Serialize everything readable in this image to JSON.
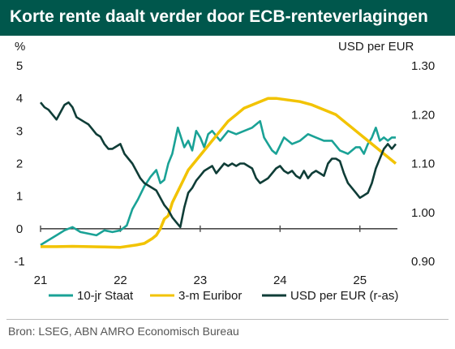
{
  "title": "Korte rente daalt verder door ECB-renteverlagingen",
  "source": "Bron: LSEG, ABN AMRO Economisch Bureau",
  "colors": {
    "title_bg": "#00574c",
    "staat": "#1aa296",
    "euribor": "#f2c300",
    "usd": "#0f3d37"
  },
  "chart_data": {
    "type": "line",
    "y_left": {
      "label": "%",
      "ticks": [
        "5",
        "4",
        "3",
        "2",
        "1",
        "0",
        "-1"
      ],
      "range": [
        -1,
        5
      ]
    },
    "y_right": {
      "label": "USD per EUR",
      "ticks": [
        "1.30",
        "1.20",
        "1.10",
        "1.00",
        "0.90"
      ],
      "range": [
        0.9,
        1.3
      ]
    },
    "x_ticks": [
      "21",
      "22",
      "23",
      "24",
      "25"
    ],
    "x_range": [
      2021.0,
      2025.47
    ],
    "series": [
      {
        "name": "10-jr Staat",
        "axis": "left",
        "x": [
          2021.0,
          2021.1,
          2021.2,
          2021.3,
          2021.4,
          2021.5,
          2021.6,
          2021.7,
          2021.8,
          2021.9,
          2022.0,
          2022.08,
          2022.15,
          2022.22,
          2022.3,
          2022.38,
          2022.45,
          2022.5,
          2022.55,
          2022.6,
          2022.65,
          2022.72,
          2022.8,
          2022.85,
          2022.9,
          2022.95,
          2023.0,
          2023.05,
          2023.1,
          2023.15,
          2023.25,
          2023.35,
          2023.45,
          2023.55,
          2023.65,
          2023.75,
          2023.8,
          2023.85,
          2023.9,
          2023.95,
          2024.05,
          2024.15,
          2024.25,
          2024.35,
          2024.45,
          2024.55,
          2024.65,
          2024.75,
          2024.85,
          2024.95,
          2025.0,
          2025.05,
          2025.1,
          2025.15,
          2025.2,
          2025.25,
          2025.3,
          2025.35,
          2025.4,
          2025.45
        ],
        "values": [
          -0.5,
          -0.35,
          -0.2,
          -0.05,
          0.05,
          -0.1,
          -0.15,
          -0.2,
          -0.05,
          -0.1,
          -0.05,
          0.1,
          0.6,
          0.9,
          1.3,
          1.6,
          1.8,
          1.4,
          1.5,
          2.0,
          2.3,
          3.1,
          2.5,
          2.7,
          2.4,
          3.0,
          2.8,
          2.5,
          2.9,
          3.0,
          2.7,
          3.0,
          2.9,
          3.0,
          3.1,
          3.3,
          2.8,
          2.6,
          2.4,
          2.3,
          2.8,
          2.6,
          2.7,
          2.9,
          2.8,
          2.7,
          2.7,
          2.4,
          2.3,
          2.5,
          2.5,
          2.3,
          2.6,
          2.8,
          3.1,
          2.7,
          2.8,
          2.7,
          2.8,
          2.8
        ]
      },
      {
        "name": "3-m Euribor",
        "axis": "left",
        "x": [
          2021.0,
          2021.2,
          2021.4,
          2021.6,
          2021.8,
          2022.0,
          2022.2,
          2022.3,
          2022.4,
          2022.45,
          2022.5,
          2022.55,
          2022.6,
          2022.65,
          2022.75,
          2022.85,
          2022.95,
          2023.05,
          2023.15,
          2023.25,
          2023.35,
          2023.45,
          2023.55,
          2023.65,
          2023.75,
          2023.85,
          2023.95,
          2024.1,
          2024.25,
          2024.4,
          2024.5,
          2024.6,
          2024.7,
          2024.8,
          2024.9,
          2025.0,
          2025.05,
          2025.1,
          2025.15,
          2025.2,
          2025.25,
          2025.3,
          2025.35,
          2025.4,
          2025.45
        ],
        "values": [
          -0.55,
          -0.55,
          -0.54,
          -0.55,
          -0.56,
          -0.57,
          -0.5,
          -0.45,
          -0.3,
          -0.2,
          0.0,
          0.3,
          0.4,
          0.8,
          1.3,
          1.8,
          2.1,
          2.4,
          2.7,
          3.0,
          3.3,
          3.5,
          3.7,
          3.8,
          3.9,
          4.0,
          4.0,
          3.95,
          3.9,
          3.8,
          3.7,
          3.6,
          3.5,
          3.3,
          3.1,
          2.9,
          2.8,
          2.7,
          2.6,
          2.5,
          2.4,
          2.3,
          2.2,
          2.1,
          2.0
        ]
      },
      {
        "name": "USD per EUR (r-as)",
        "axis": "right",
        "x": [
          2021.0,
          2021.05,
          2021.1,
          2021.15,
          2021.2,
          2021.25,
          2021.3,
          2021.35,
          2021.4,
          2021.45,
          2021.5,
          2021.55,
          2021.6,
          2021.65,
          2021.7,
          2021.75,
          2021.8,
          2021.85,
          2021.9,
          2021.95,
          2022.0,
          2022.05,
          2022.1,
          2022.15,
          2022.2,
          2022.25,
          2022.3,
          2022.35,
          2022.4,
          2022.45,
          2022.5,
          2022.55,
          2022.6,
          2022.65,
          2022.7,
          2022.75,
          2022.8,
          2022.85,
          2022.9,
          2022.95,
          2023.0,
          2023.05,
          2023.1,
          2023.15,
          2023.2,
          2023.25,
          2023.3,
          2023.35,
          2023.4,
          2023.45,
          2023.5,
          2023.55,
          2023.6,
          2023.65,
          2023.7,
          2023.75,
          2023.8,
          2023.85,
          2023.9,
          2023.95,
          2024.0,
          2024.05,
          2024.1,
          2024.15,
          2024.2,
          2024.25,
          2024.3,
          2024.35,
          2024.4,
          2024.45,
          2024.5,
          2024.55,
          2024.6,
          2024.65,
          2024.7,
          2024.75,
          2024.8,
          2024.85,
          2024.9,
          2024.95,
          2025.0,
          2025.05,
          2025.1,
          2025.15,
          2025.2,
          2025.25,
          2025.3,
          2025.35,
          2025.4,
          2025.45
        ],
        "values": [
          1.225,
          1.215,
          1.21,
          1.2,
          1.19,
          1.205,
          1.22,
          1.225,
          1.215,
          1.195,
          1.19,
          1.185,
          1.18,
          1.17,
          1.16,
          1.155,
          1.14,
          1.13,
          1.13,
          1.135,
          1.14,
          1.12,
          1.11,
          1.1,
          1.085,
          1.07,
          1.06,
          1.055,
          1.05,
          1.045,
          1.03,
          1.015,
          1.005,
          0.99,
          0.98,
          0.97,
          1.01,
          1.04,
          1.05,
          1.065,
          1.075,
          1.085,
          1.09,
          1.095,
          1.08,
          1.09,
          1.1,
          1.095,
          1.1,
          1.095,
          1.1,
          1.1,
          1.095,
          1.09,
          1.07,
          1.06,
          1.065,
          1.07,
          1.08,
          1.09,
          1.095,
          1.085,
          1.08,
          1.085,
          1.075,
          1.07,
          1.085,
          1.07,
          1.08,
          1.085,
          1.08,
          1.075,
          1.1,
          1.11,
          1.11,
          1.105,
          1.08,
          1.06,
          1.05,
          1.04,
          1.03,
          1.035,
          1.04,
          1.06,
          1.09,
          1.11,
          1.13,
          1.14,
          1.13,
          1.14
        ]
      }
    ]
  },
  "legend": {
    "staat": "10-jr Staat",
    "euribor": "3-m Euribor",
    "usd": "USD per EUR (r-as)"
  }
}
